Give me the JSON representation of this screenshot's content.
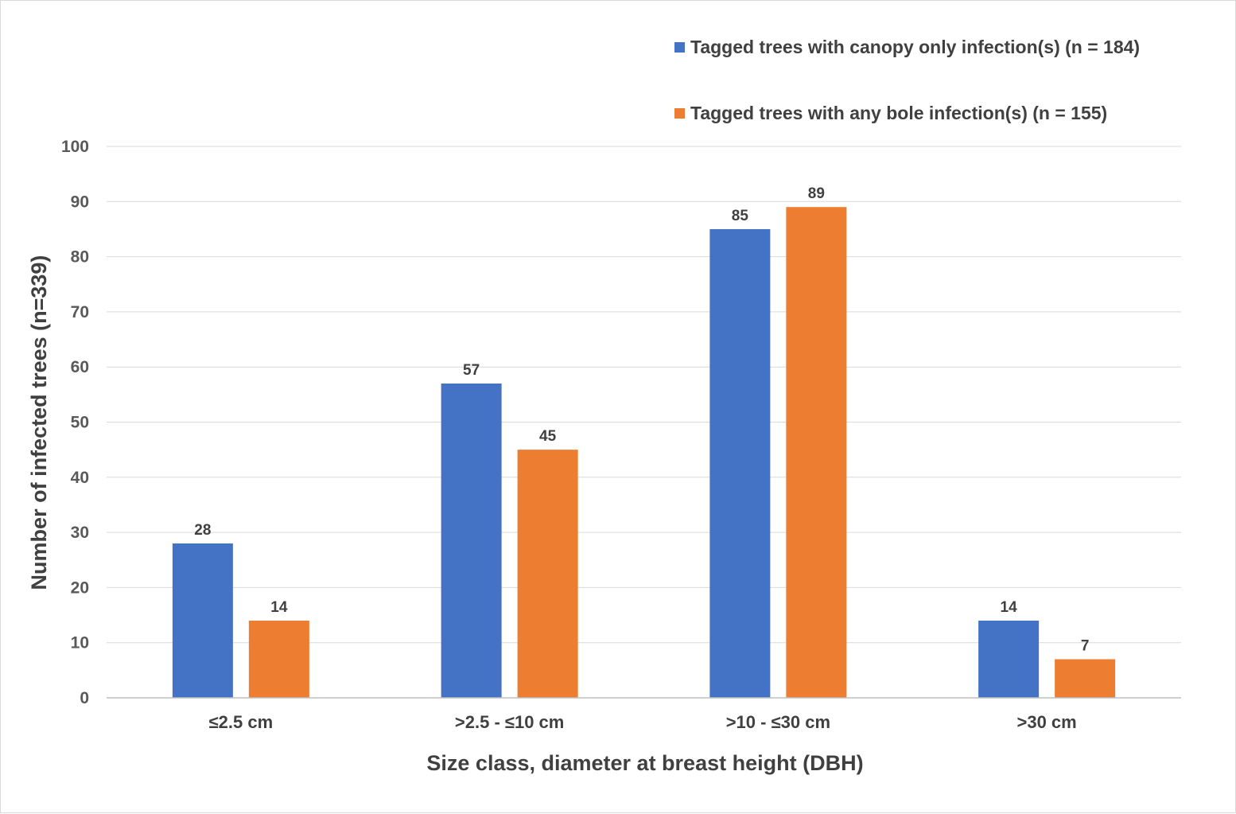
{
  "chart_data": {
    "type": "bar",
    "title": "",
    "xlabel": "Size class, diameter at breast height (DBH)",
    "ylabel": "Number of infected trees (n=339)",
    "categories": [
      "≤2.5 cm",
      ">2.5 - ≤10 cm",
      ">10 - ≤30 cm",
      ">30 cm"
    ],
    "series": [
      {
        "name": "Tagged trees with canopy only infection(s) (n = 184)",
        "color": "#4472C4",
        "values": [
          28,
          57,
          85,
          14
        ]
      },
      {
        "name": "Tagged trees with any bole infection(s) (n = 155)",
        "color": "#ED7D31",
        "values": [
          14,
          45,
          89,
          7
        ]
      }
    ],
    "ylim": [
      0,
      100
    ],
    "yticks": [
      0,
      10,
      20,
      30,
      40,
      50,
      60,
      70,
      80,
      90,
      100
    ],
    "grid": true,
    "legend_position": "top-right"
  }
}
